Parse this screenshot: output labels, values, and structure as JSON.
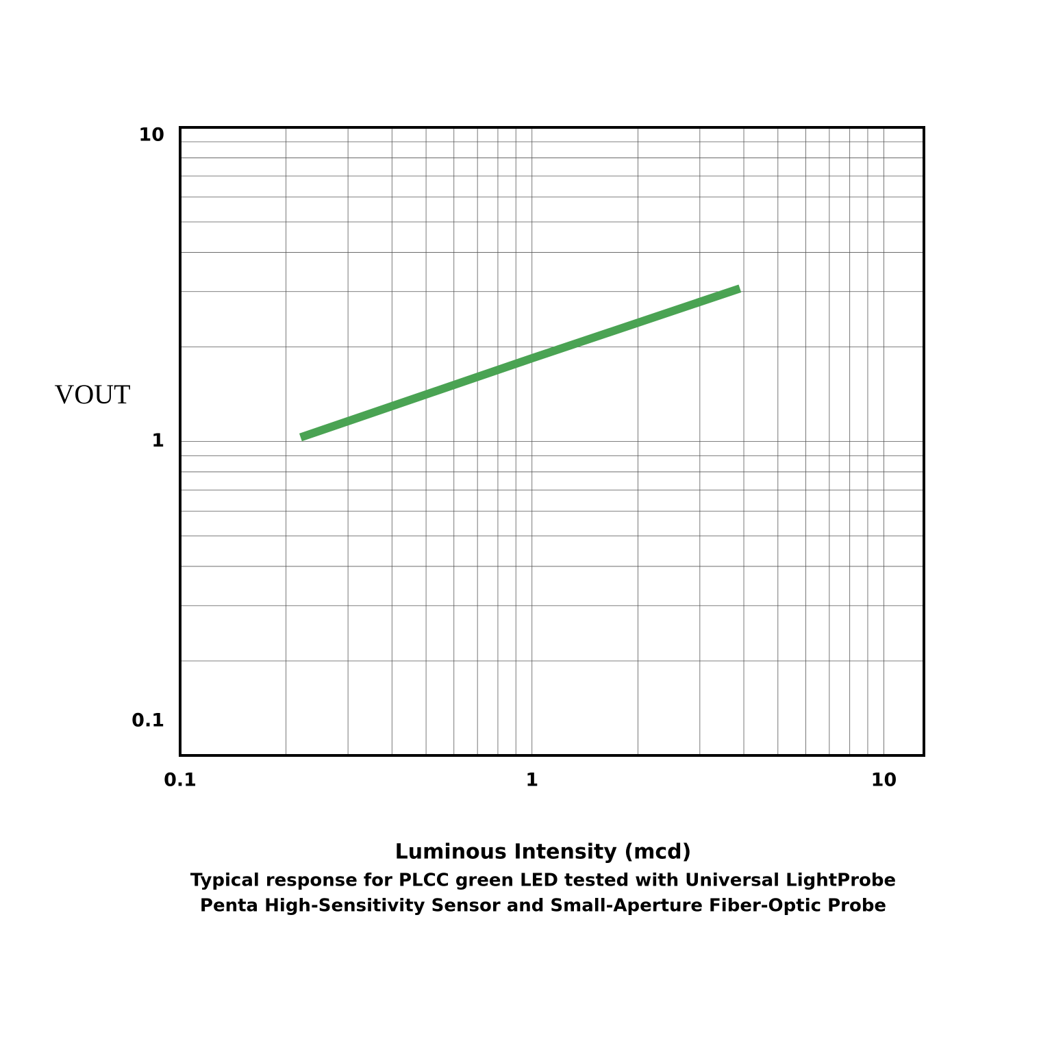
{
  "chart_data": {
    "type": "line",
    "log_x": true,
    "log_y": true,
    "grid": true,
    "xlabel": "Luminous Intensity (mcd)",
    "ylabel": "VOUT",
    "caption": [
      "Typical response for PLCC green LED tested with Universal LightProbe",
      "Penta High-Sensitivity Sensor and Small-Aperture Fiber-Optic Probe"
    ],
    "x": [
      0.22,
      1,
      3.9
    ],
    "series": [
      {
        "color": "#4aa353",
        "values": [
          1.03,
          1.84,
          3.07
        ]
      }
    ],
    "xlim": [
      0.1,
      13
    ],
    "xticks": [
      0.1,
      1,
      10
    ],
    "xminor": [
      0.2,
      0.3,
      0.4,
      0.5,
      0.6,
      0.7,
      0.8,
      0.9,
      2,
      3,
      4,
      5,
      6,
      7,
      8,
      9
    ],
    "ylim": [
      0.1,
      10
    ],
    "yticks": [
      0.1,
      1,
      10
    ],
    "yminor": [
      0.2,
      0.3,
      0.4,
      0.5,
      0.6,
      0.7,
      0.8,
      0.9,
      2,
      3,
      4,
      5,
      6,
      7,
      8,
      9
    ]
  }
}
